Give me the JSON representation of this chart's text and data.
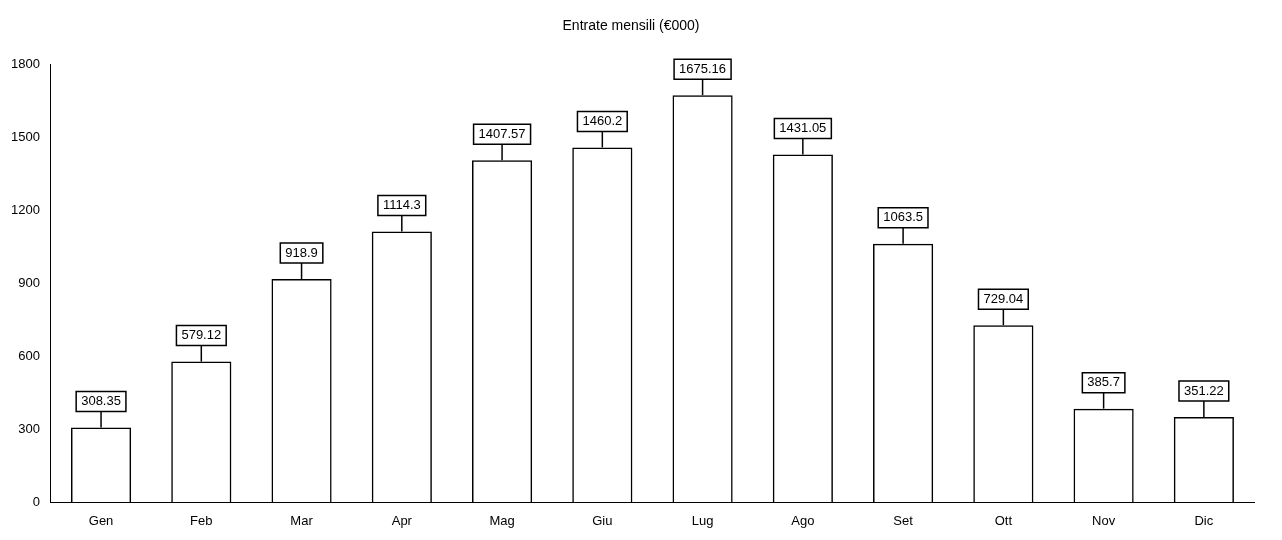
{
  "chart_data": {
    "type": "bar",
    "title": "Entrate mensili (€000)",
    "categories": [
      "Gen",
      "Feb",
      "Mar",
      "Apr",
      "Mag",
      "Giu",
      "Lug",
      "Ago",
      "Set",
      "Ott",
      "Nov",
      "Dic"
    ],
    "values": [
      308.35,
      579.12,
      918.9,
      1114.3,
      1407.57,
      1460.2,
      1675.16,
      1431.05,
      1063.5,
      729.04,
      385.7,
      351.22
    ],
    "color": "#000000",
    "ylim": [
      0,
      1800
    ],
    "yticks": [
      0,
      300,
      600,
      900,
      1200,
      1500,
      1800
    ],
    "grid": false,
    "legend": false,
    "data_labels": true
  }
}
